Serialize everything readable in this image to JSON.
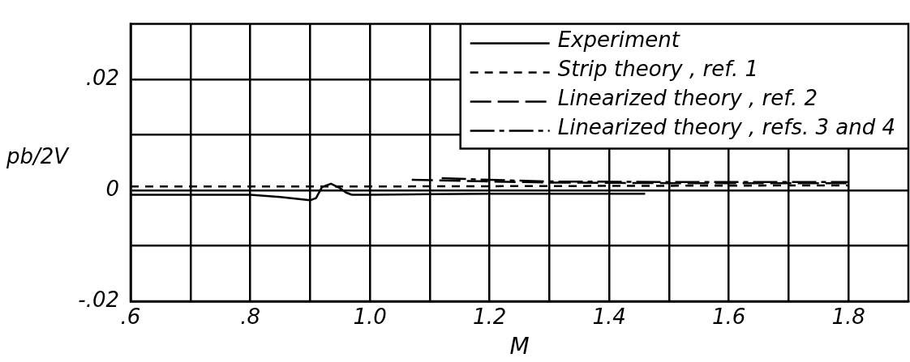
{
  "chart_data": {
    "type": "line",
    "xlabel": "M",
    "ylabel": "pb/2V",
    "xlim": [
      0.6,
      1.9
    ],
    "ylim": [
      -0.02,
      0.03
    ],
    "xticks": [
      {
        "value": 0.6,
        "label": ".6"
      },
      {
        "value": 0.7,
        "label": null
      },
      {
        "value": 0.8,
        "label": ".8"
      },
      {
        "value": 0.9,
        "label": null
      },
      {
        "value": 1.0,
        "label": "1.0"
      },
      {
        "value": 1.1,
        "label": null
      },
      {
        "value": 1.2,
        "label": "1.2"
      },
      {
        "value": 1.3,
        "label": null
      },
      {
        "value": 1.4,
        "label": "1.4"
      },
      {
        "value": 1.5,
        "label": null
      },
      {
        "value": 1.6,
        "label": "1.6"
      },
      {
        "value": 1.7,
        "label": null
      },
      {
        "value": 1.8,
        "label": "1.8"
      }
    ],
    "yticks": [
      {
        "value": -0.02,
        "label": "-.02"
      },
      {
        "value": -0.01,
        "label": null
      },
      {
        "value": 0,
        "label": "0"
      },
      {
        "value": 0.01,
        "label": null
      },
      {
        "value": 0.02,
        "label": ".02"
      }
    ],
    "grid": true,
    "legend": "top right",
    "marker": "none",
    "series": [
      {
        "name": "Experiment",
        "color": "#000000",
        "line_style": "solid",
        "x": [
          0.6,
          0.7,
          0.8,
          0.85,
          0.9,
          0.91,
          0.92,
          0.935,
          0.95,
          0.96,
          0.97,
          1.0,
          1.1,
          1.2,
          1.3,
          1.46
        ],
        "values": [
          -0.0008,
          -0.0008,
          -0.0008,
          -0.0012,
          -0.0018,
          -0.0014,
          0.0006,
          0.0012,
          0.0004,
          -0.0004,
          -0.0008,
          -0.0008,
          -0.0007,
          -0.0006,
          -0.0006,
          -0.0006
        ]
      },
      {
        "name": "Strip theory , ref. 1",
        "color": "#000000",
        "line_style": "dashed",
        "x": [
          0.6,
          1.0,
          1.4,
          1.8
        ],
        "values": [
          0.0007,
          0.0007,
          0.0008,
          0.0009
        ]
      },
      {
        "name": "Linearized theory , ref. 2",
        "color": "#000000",
        "line_style": "dashed",
        "x": [
          1.07,
          1.2,
          1.3,
          1.5,
          1.8
        ],
        "values": [
          0.0019,
          0.0016,
          0.0014,
          0.0013,
          0.0013
        ]
      },
      {
        "name": "Linearized theory , refs. 3 and 4",
        "color": "#000000",
        "line_style": "dashed",
        "x": [
          1.12,
          1.2,
          1.3,
          1.5,
          1.8
        ],
        "values": [
          0.0022,
          0.0019,
          0.0016,
          0.0015,
          0.0015
        ]
      }
    ]
  }
}
